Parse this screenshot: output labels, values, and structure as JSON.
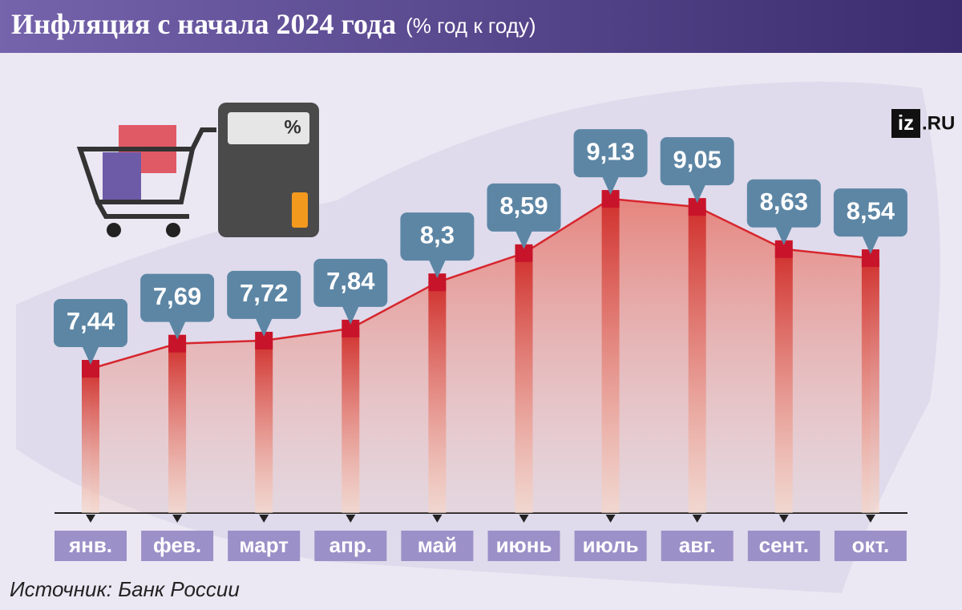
{
  "chart_data": {
    "type": "line",
    "title": "Инфляция с начала 2024 года",
    "subtitle": "(% год к году)",
    "source": "Источник: Банк России",
    "logo": [
      "iz",
      ".RU"
    ],
    "categories": [
      "янв.",
      "фев.",
      "март",
      "апр.",
      "май",
      "июнь",
      "июль",
      "авг.",
      "сент.",
      "окт."
    ],
    "values": [
      7.44,
      7.69,
      7.72,
      7.84,
      8.3,
      8.59,
      9.13,
      9.05,
      8.63,
      8.54
    ],
    "value_labels": [
      "7,44",
      "7,69",
      "7,72",
      "7,84",
      "8,3",
      "8,59",
      "9,13",
      "9,05",
      "8,63",
      "8,54"
    ],
    "color": "#d7262e"
  }
}
